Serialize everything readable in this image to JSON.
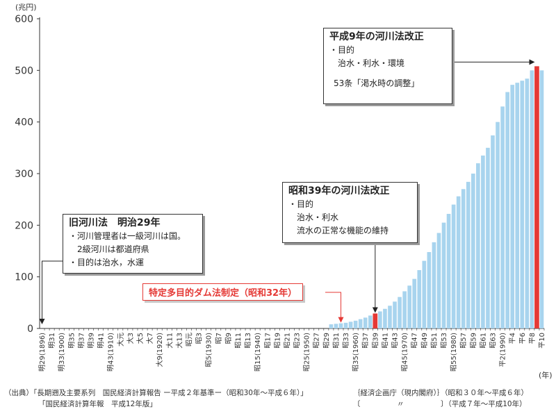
{
  "chart_data": {
    "type": "bar",
    "y_unit": "(兆円)",
    "x_unit": "(年)",
    "ylim": [
      0,
      600
    ],
    "yticks": [
      0,
      100,
      200,
      300,
      400,
      500,
      600
    ],
    "grid": false,
    "tick_labels": [
      "明29(1896)",
      "明31",
      "明33(1900)",
      "明35",
      "明37",
      "明39",
      "明41",
      "明43(1910)",
      "大元",
      "大3",
      "大5",
      "大7",
      "大9(1920)",
      "大11",
      "大13",
      "昭元",
      "昭3",
      "昭5(1930)",
      "昭7",
      "昭9",
      "昭11",
      "昭13",
      "昭15(1940)",
      "昭17",
      "昭19",
      "昭21",
      "昭23",
      "昭25(1950)",
      "昭27",
      "昭29",
      "昭31",
      "昭33",
      "昭35(1960)",
      "昭37",
      "昭39",
      "昭41",
      "昭43",
      "昭45(1970)",
      "昭47",
      "昭49",
      "昭51",
      "昭53",
      "昭55(1980)",
      "昭57",
      "昭59",
      "昭61",
      "昭63",
      "平2(1990)",
      "平4",
      "平6",
      "平8",
      "平10"
    ],
    "x": [
      "昭30",
      "昭31",
      "昭32",
      "昭33",
      "昭34",
      "昭35",
      "昭36",
      "昭37",
      "昭38",
      "昭39",
      "昭40",
      "昭41",
      "昭42",
      "昭43",
      "昭44",
      "昭45",
      "昭46",
      "昭47",
      "昭48",
      "昭49",
      "昭50",
      "昭51",
      "昭52",
      "昭53",
      "昭54",
      "昭55",
      "昭56",
      "昭57",
      "昭58",
      "昭59",
      "昭60",
      "昭61",
      "昭62",
      "昭63",
      "平元",
      "平2",
      "平3",
      "平4",
      "平5",
      "平6",
      "平7",
      "平8",
      "平9",
      "平10"
    ],
    "values": [
      8,
      9,
      10,
      11,
      13,
      15,
      18,
      21,
      25,
      29,
      33,
      38,
      44,
      52,
      61,
      72,
      83,
      96,
      113,
      131,
      148,
      167,
      185,
      205,
      222,
      240,
      256,
      270,
      284,
      300,
      320,
      335,
      350,
      374,
      400,
      430,
      458,
      472,
      476,
      480,
      484,
      500,
      508,
      500
    ],
    "highlight_years": [
      "昭39",
      "平9"
    ]
  },
  "annotations": {
    "h9": {
      "title": "平成9年の河川法改正",
      "lines": [
        "・目的",
        "治水・利水・環境",
        "",
        "53条「渇水時の調整」"
      ]
    },
    "s39": {
      "title": "昭和39年の河川法改正",
      "lines": [
        "・目的",
        "治水・利水",
        "流水の正常な機能の維持"
      ]
    },
    "m29": {
      "title": "旧河川法　明治29年",
      "lines": [
        "・河川管理者は一級河川は国。",
        "2級河川は都道府県",
        "・目的は治水，水運"
      ]
    },
    "s32": "特定多目的ダム法制定（昭和32年）"
  },
  "source": {
    "line1_a": "（出典）「長期遡及主要系列　国民経済計算報告 ー平成２年基準ー（昭和30年～平成６年）」",
    "line1_b": "｛経済企画庁（現内閣府）｝（昭和３０年～平成６年）",
    "line2_a": "「国民経済計算年報　平成12年版」",
    "line2_b": "〔　　　　　〃　　　　　〕（平成７年～平成10年）"
  },
  "colors": {
    "bar": "#a8d4ee",
    "highlight": "#e53935",
    "axis": "#333333"
  }
}
